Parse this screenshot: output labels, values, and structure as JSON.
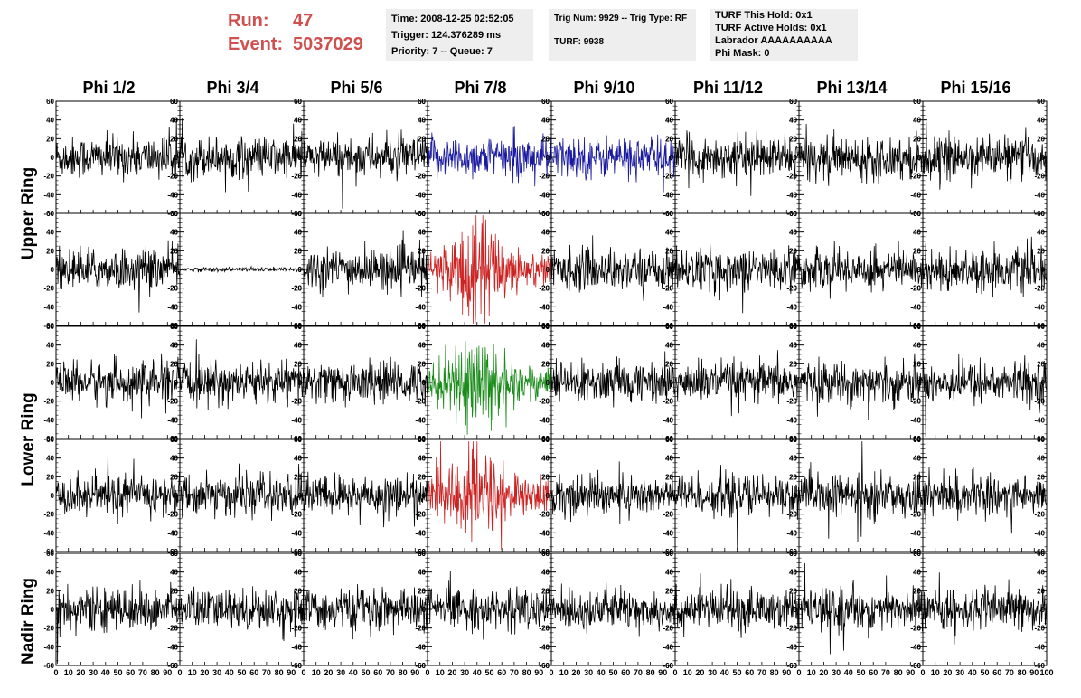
{
  "header": {
    "run_label": "Run:",
    "run_value": "47",
    "event_label": "Event:",
    "event_value": "5037029",
    "time": "Time: 2008-12-25 02:52:05",
    "trigger": "Trigger: 124.376289 ms",
    "priority": "Priority: 7 -- Queue: 7",
    "trig_num": "Trig Num: 9929 -- Trig Type: RF",
    "turf": "TURF: 9938",
    "turf_this_hold": "TURF This Hold: 0x1",
    "turf_active_holds": "TURF Active Holds: 0x1",
    "labrador": "Labrador AAAAAAAAAA",
    "phi_mask": "Phi Mask: 0"
  },
  "columns": [
    "Phi 1/2",
    "Phi 3/4",
    "Phi 5/6",
    "Phi 7/8",
    "Phi 9/10",
    "Phi 11/12",
    "Phi 13/14",
    "Phi 15/16"
  ],
  "ring_labels": {
    "upper": "Upper Ring",
    "lower": "Lower Ring",
    "nadir": "Nadir Ring"
  },
  "chart_data": {
    "type": "line",
    "description_rows": [
      "upper-a",
      "upper-b",
      "lower-a",
      "lower-b",
      "nadir"
    ],
    "xlim": [
      0,
      100
    ],
    "ylim": [
      -60,
      60
    ],
    "y_ticks": [
      -60,
      -40,
      -20,
      0,
      20,
      40,
      60
    ],
    "x_tick_labels": [
      "0",
      "10",
      "20",
      "30",
      "40",
      "50",
      "60",
      "70",
      "80",
      "90",
      "100"
    ],
    "samples_per_trace": 256,
    "line_colors": {
      "default": "#000000",
      "upper_highlight": "#1a1aa0",
      "hpol_highlight": "#cc2222",
      "vpol_highlight": "#1a8c1a"
    },
    "highlighted_panels": [
      {
        "row": 0,
        "col": 3,
        "color": "#1a1aa0"
      },
      {
        "row": 0,
        "col": 4,
        "color": "#1a1aa0"
      },
      {
        "row": 1,
        "col": 3,
        "color": "#cc2222"
      },
      {
        "row": 2,
        "col": 3,
        "color": "#1a8c1a"
      },
      {
        "row": 3,
        "col": 3,
        "color": "#cc2222"
      }
    ],
    "flat_panels": [
      {
        "row": 1,
        "col": 1
      }
    ],
    "trace_amplitude_typical": 20
  }
}
